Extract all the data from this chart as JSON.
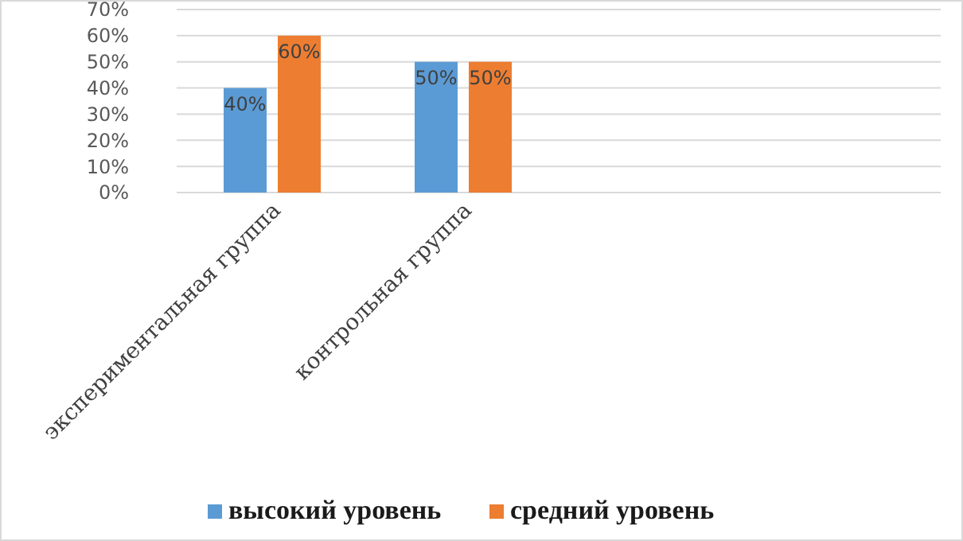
{
  "chart_data": {
    "type": "bar",
    "categories": [
      "экспериментальная группа",
      "контрольная группа",
      null,
      null
    ],
    "series": [
      {
        "name": "высокий уровень",
        "color": "#5b9bd5",
        "values": [
          40,
          50,
          null,
          null
        ]
      },
      {
        "name": "средний уровень",
        "color": "#ed7d31",
        "values": [
          60,
          50,
          null,
          null
        ]
      }
    ],
    "ylim": [
      0,
      70
    ],
    "yticks": [
      {
        "value": 0,
        "label": "0%"
      },
      {
        "value": 10,
        "label": "10%"
      },
      {
        "value": 20,
        "label": "20%"
      },
      {
        "value": 30,
        "label": "30%"
      },
      {
        "value": 40,
        "label": "40%"
      },
      {
        "value": 50,
        "label": "50%"
      },
      {
        "value": 60,
        "label": "60%"
      },
      {
        "value": 70,
        "label": "70%"
      }
    ],
    "value_labels": [
      [
        "40%",
        "50%",
        null,
        null
      ],
      [
        "60%",
        "50%",
        null,
        null
      ]
    ],
    "grid": "y",
    "legend": "bottom"
  }
}
